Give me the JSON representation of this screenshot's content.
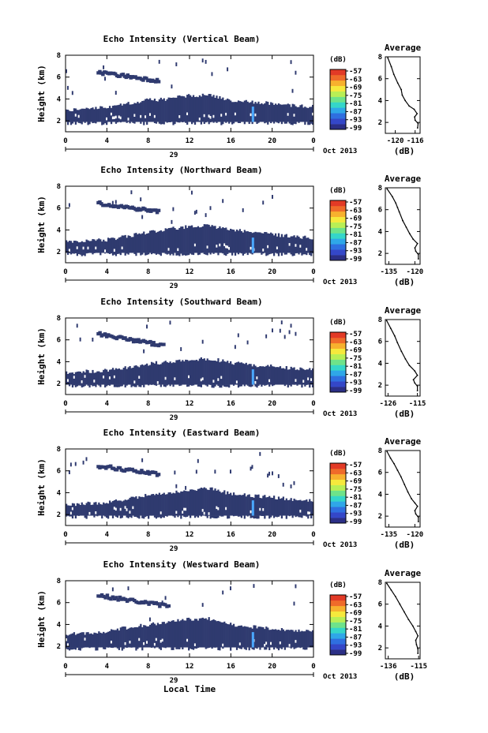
{
  "colors": {
    "background": "#ffffff",
    "echo_main": "#2f3a6f",
    "echo_core": "#3b4a9a",
    "streak": "#4aa8ff",
    "axis": "#000000",
    "colorbar": [
      "#2b2f86",
      "#3447c8",
      "#2f6fe0",
      "#2fa7e8",
      "#35d6c9",
      "#6ee38a",
      "#b9ef55",
      "#f6e93c",
      "#f7b12e",
      "#ef6b2a",
      "#e23a26"
    ]
  },
  "figure": {
    "xlabel": "Local Time",
    "date_label": "Oct 2013",
    "day_label": "29"
  },
  "chart_data": [
    {
      "type": "heatmap",
      "title": "Echo Intensity (Vertical Beam)",
      "ylabel": "Height (km)",
      "x_ticks": [
        "0",
        "4",
        "8",
        "12",
        "16",
        "20",
        "0"
      ],
      "y_ticks": [
        "2",
        "4",
        "6",
        "8"
      ],
      "xlim": [
        0,
        24
      ],
      "ylim": [
        1,
        8
      ],
      "colorbar": {
        "label": "(dB)",
        "ticks": [
          "-57",
          "-63",
          "-69",
          "-75",
          "-81",
          "-87",
          "-93",
          "-99"
        ],
        "range": [
          -99,
          -57
        ]
      },
      "echo_top_km": [
        [
          0,
          3.0
        ],
        [
          2,
          3.1
        ],
        [
          4,
          3.2
        ],
        [
          6,
          3.6
        ],
        [
          8,
          3.9
        ],
        [
          10,
          4.0
        ],
        [
          12,
          4.3
        ],
        [
          14,
          4.4
        ],
        [
          16,
          3.9
        ],
        [
          18,
          3.7
        ],
        [
          20,
          3.6
        ],
        [
          22,
          3.4
        ],
        [
          24,
          3.3
        ]
      ],
      "echo_bottom_km": 1.9,
      "upper_layer": {
        "x": [
          3.0,
          9.0
        ],
        "y": [
          5.8,
          6.6
        ]
      },
      "streak_x": 18.1,
      "profile": {
        "title": "Average",
        "xlabel": "(dB)",
        "x_ticks": [
          "-120",
          "-116"
        ],
        "xlim": [
          -122,
          -115
        ],
        "y_ticks": [
          "2",
          "4",
          "6",
          "8"
        ],
        "ylim": [
          1,
          8
        ],
        "points": [
          [
            -121.5,
            7.9
          ],
          [
            -120.8,
            7.1
          ],
          [
            -120.3,
            6.4
          ],
          [
            -119.5,
            5.6
          ],
          [
            -118.8,
            5.0
          ],
          [
            -118.6,
            4.5
          ],
          [
            -118.0,
            4.0
          ],
          [
            -117.2,
            3.5
          ],
          [
            -116.2,
            3.2
          ],
          [
            -115.6,
            2.8
          ],
          [
            -116.1,
            2.5
          ],
          [
            -116.0,
            2.2
          ],
          [
            -115.4,
            1.9
          ],
          [
            -115.5,
            1.5
          ]
        ]
      }
    },
    {
      "type": "heatmap",
      "title": "Echo Intensity (Northward Beam)",
      "ylabel": "Height (km)",
      "x_ticks": [
        "0",
        "4",
        "8",
        "12",
        "16",
        "20",
        "0"
      ],
      "y_ticks": [
        "2",
        "4",
        "6",
        "8"
      ],
      "xlim": [
        0,
        24
      ],
      "ylim": [
        1,
        8
      ],
      "colorbar": {
        "label": "(dB)",
        "ticks": [
          "-57",
          "-63",
          "-69",
          "-75",
          "-81",
          "-87",
          "-93",
          "-99"
        ],
        "range": [
          -99,
          -57
        ]
      },
      "echo_top_km": [
        [
          0,
          2.9
        ],
        [
          2,
          3.0
        ],
        [
          4,
          3.1
        ],
        [
          6,
          3.4
        ],
        [
          8,
          3.8
        ],
        [
          10,
          4.1
        ],
        [
          12,
          4.3
        ],
        [
          14,
          4.4
        ],
        [
          16,
          4.0
        ],
        [
          18,
          3.8
        ],
        [
          20,
          3.6
        ],
        [
          22,
          3.4
        ],
        [
          24,
          3.3
        ]
      ],
      "echo_bottom_km": 1.9,
      "upper_layer": {
        "x": [
          3.0,
          9.0
        ],
        "y": [
          5.8,
          6.6
        ]
      },
      "streak_x": 18.1,
      "profile": {
        "title": "Average",
        "xlabel": "(dB)",
        "x_ticks": [
          "-135",
          "-120"
        ],
        "xlim": [
          -137,
          -117
        ],
        "y_ticks": [
          "2",
          "4",
          "6",
          "8"
        ],
        "ylim": [
          1,
          8
        ],
        "points": [
          [
            -136,
            7.9
          ],
          [
            -133,
            7.2
          ],
          [
            -131,
            6.6
          ],
          [
            -130,
            6.2
          ],
          [
            -129,
            5.8
          ],
          [
            -127,
            5.0
          ],
          [
            -125,
            4.4
          ],
          [
            -123,
            3.8
          ],
          [
            -121,
            3.3
          ],
          [
            -118.5,
            2.9
          ],
          [
            -120,
            2.5
          ],
          [
            -119.5,
            2.2
          ],
          [
            -118,
            1.9
          ],
          [
            -118,
            1.5
          ]
        ]
      }
    },
    {
      "type": "heatmap",
      "title": "Echo Intensity (Southward Beam)",
      "ylabel": "Height (km)",
      "x_ticks": [
        "0",
        "4",
        "8",
        "12",
        "16",
        "20",
        "0"
      ],
      "y_ticks": [
        "2",
        "4",
        "6",
        "8"
      ],
      "xlim": [
        0,
        24
      ],
      "ylim": [
        1,
        8
      ],
      "colorbar": {
        "label": "(dB)",
        "ticks": [
          "-57",
          "-63",
          "-69",
          "-75",
          "-81",
          "-87",
          "-93",
          "-99"
        ],
        "range": [
          -99,
          -57
        ]
      },
      "echo_top_km": [
        [
          0,
          3.0
        ],
        [
          2,
          3.1
        ],
        [
          4,
          3.2
        ],
        [
          6,
          3.5
        ],
        [
          8,
          3.8
        ],
        [
          10,
          4.0
        ],
        [
          12,
          4.2
        ],
        [
          14,
          4.3
        ],
        [
          16,
          3.9
        ],
        [
          18,
          3.7
        ],
        [
          20,
          3.6
        ],
        [
          22,
          3.4
        ],
        [
          24,
          3.3
        ]
      ],
      "echo_bottom_km": 1.9,
      "upper_layer": {
        "x": [
          3.0,
          9.5
        ],
        "y": [
          5.6,
          6.7
        ]
      },
      "streak_x": 18.1,
      "profile": {
        "title": "Average",
        "xlabel": "(dB)",
        "x_ticks": [
          "-126",
          "-115"
        ],
        "xlim": [
          -127,
          -114
        ],
        "y_ticks": [
          "2",
          "4",
          "6",
          "8"
        ],
        "ylim": [
          1,
          8
        ],
        "points": [
          [
            -126.5,
            7.9
          ],
          [
            -125,
            7.2
          ],
          [
            -123.5,
            6.5
          ],
          [
            -122.5,
            5.9
          ],
          [
            -121,
            5.1
          ],
          [
            -119.5,
            4.4
          ],
          [
            -118,
            3.8
          ],
          [
            -116,
            3.3
          ],
          [
            -115,
            2.9
          ],
          [
            -116.5,
            2.5
          ],
          [
            -116,
            2.2
          ],
          [
            -115,
            1.9
          ],
          [
            -115,
            1.5
          ]
        ]
      }
    },
    {
      "type": "heatmap",
      "title": "Echo Intensity (Eastward Beam)",
      "ylabel": "Height (km)",
      "x_ticks": [
        "0",
        "4",
        "8",
        "12",
        "16",
        "20",
        "0"
      ],
      "y_ticks": [
        "2",
        "4",
        "6",
        "8"
      ],
      "xlim": [
        0,
        24
      ],
      "ylim": [
        1,
        8
      ],
      "colorbar": {
        "label": "(dB)",
        "ticks": [
          "-57",
          "-63",
          "-69",
          "-75",
          "-81",
          "-87",
          "-93",
          "-99"
        ],
        "range": [
          -99,
          -57
        ]
      },
      "echo_top_km": [
        [
          0,
          2.9
        ],
        [
          2,
          3.0
        ],
        [
          4,
          3.1
        ],
        [
          6,
          3.4
        ],
        [
          8,
          3.8
        ],
        [
          10,
          4.0
        ],
        [
          12,
          4.3
        ],
        [
          14,
          4.4
        ],
        [
          16,
          3.9
        ],
        [
          18,
          3.7
        ],
        [
          20,
          3.6
        ],
        [
          22,
          3.4
        ],
        [
          24,
          3.3
        ]
      ],
      "echo_bottom_km": 1.9,
      "upper_layer": {
        "x": [
          3.0,
          9.0
        ],
        "y": [
          5.8,
          6.6
        ]
      },
      "streak_x": 18.1,
      "profile": {
        "title": "Average",
        "xlabel": "(dB)",
        "x_ticks": [
          "-135",
          "-120"
        ],
        "xlim": [
          -137,
          -117
        ],
        "y_ticks": [
          "2",
          "4",
          "6",
          "8"
        ],
        "ylim": [
          1,
          8
        ],
        "points": [
          [
            -136,
            7.9
          ],
          [
            -134,
            7.3
          ],
          [
            -132,
            6.8
          ],
          [
            -130,
            6.2
          ],
          [
            -128,
            5.6
          ],
          [
            -126,
            4.9
          ],
          [
            -124,
            4.2
          ],
          [
            -122,
            3.6
          ],
          [
            -120,
            3.2
          ],
          [
            -118.5,
            2.9
          ],
          [
            -120,
            2.5
          ],
          [
            -119.5,
            2.2
          ],
          [
            -118,
            1.9
          ],
          [
            -118,
            1.5
          ]
        ]
      }
    },
    {
      "type": "heatmap",
      "title": "Echo Intensity (Westward Beam)",
      "ylabel": "Height (km)",
      "x_ticks": [
        "0",
        "4",
        "8",
        "12",
        "16",
        "20",
        "0"
      ],
      "y_ticks": [
        "2",
        "4",
        "6",
        "8"
      ],
      "xlim": [
        0,
        24
      ],
      "ylim": [
        1,
        8
      ],
      "colorbar": {
        "label": "(dB)",
        "ticks": [
          "-57",
          "-63",
          "-69",
          "-75",
          "-81",
          "-87",
          "-93",
          "-99"
        ],
        "range": [
          -99,
          -57
        ]
      },
      "echo_top_km": [
        [
          0,
          3.1
        ],
        [
          2,
          3.2
        ],
        [
          4,
          3.4
        ],
        [
          6,
          3.7
        ],
        [
          8,
          4.0
        ],
        [
          10,
          4.2
        ],
        [
          12,
          4.5
        ],
        [
          14,
          4.5
        ],
        [
          16,
          4.0
        ],
        [
          18,
          3.8
        ],
        [
          20,
          3.6
        ],
        [
          22,
          3.5
        ],
        [
          24,
          3.4
        ]
      ],
      "echo_bottom_km": 1.9,
      "upper_layer": {
        "x": [
          3.0,
          10.0
        ],
        "y": [
          5.8,
          6.8
        ]
      },
      "streak_x": 18.1,
      "profile": {
        "title": "Average",
        "xlabel": "(dB)",
        "x_ticks": [
          "-136",
          "-115"
        ],
        "xlim": [
          -138,
          -114
        ],
        "y_ticks": [
          "2",
          "4",
          "6",
          "8"
        ],
        "ylim": [
          1,
          8
        ],
        "points": [
          [
            -137,
            7.9
          ],
          [
            -134,
            7.3
          ],
          [
            -131,
            6.7
          ],
          [
            -128,
            6.0
          ],
          [
            -125,
            5.3
          ],
          [
            -122,
            4.6
          ],
          [
            -119,
            4.0
          ],
          [
            -117,
            3.5
          ],
          [
            -115.5,
            3.1
          ],
          [
            -117,
            2.7
          ],
          [
            -116.5,
            2.3
          ],
          [
            -115.5,
            1.9
          ],
          [
            -115.5,
            1.5
          ]
        ]
      }
    }
  ]
}
